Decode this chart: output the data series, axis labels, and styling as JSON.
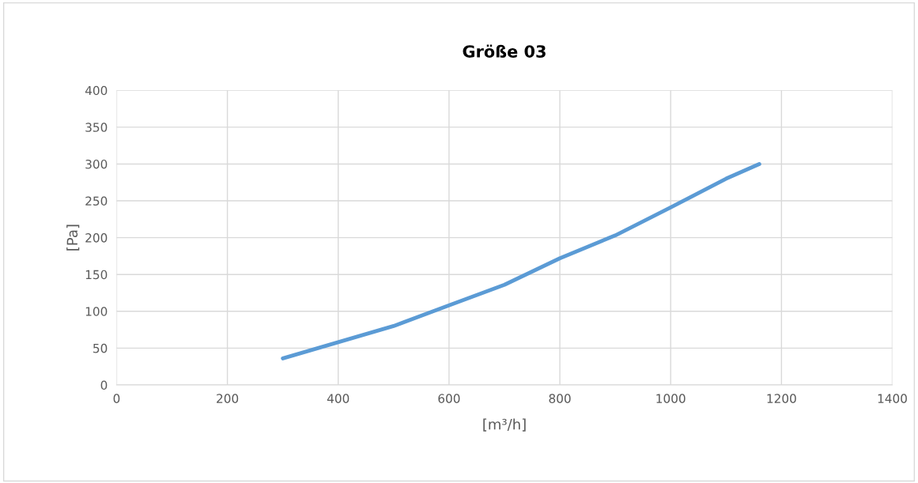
{
  "chart_data": {
    "type": "line",
    "title": "Größe 03",
    "xlabel": "[m³/h]",
    "ylabel": "[Pa]",
    "series": [
      {
        "color": "#5b9bd5",
        "x": [
          300,
          400,
          500,
          600,
          700,
          750,
          800,
          900,
          1000,
          1100,
          1160
        ],
        "values": [
          36,
          58,
          80,
          108,
          136,
          154,
          172,
          203,
          241,
          280,
          300
        ]
      }
    ],
    "xlim": [
      0,
      1400
    ],
    "xticks": [
      0,
      200,
      400,
      600,
      800,
      1000,
      1200,
      1400
    ],
    "ylim": [
      0,
      400
    ],
    "yticks": [
      0,
      50,
      100,
      150,
      200,
      250,
      300,
      350,
      400
    ],
    "grid": true,
    "legend": false,
    "marker": "none",
    "line_style": "solid"
  }
}
